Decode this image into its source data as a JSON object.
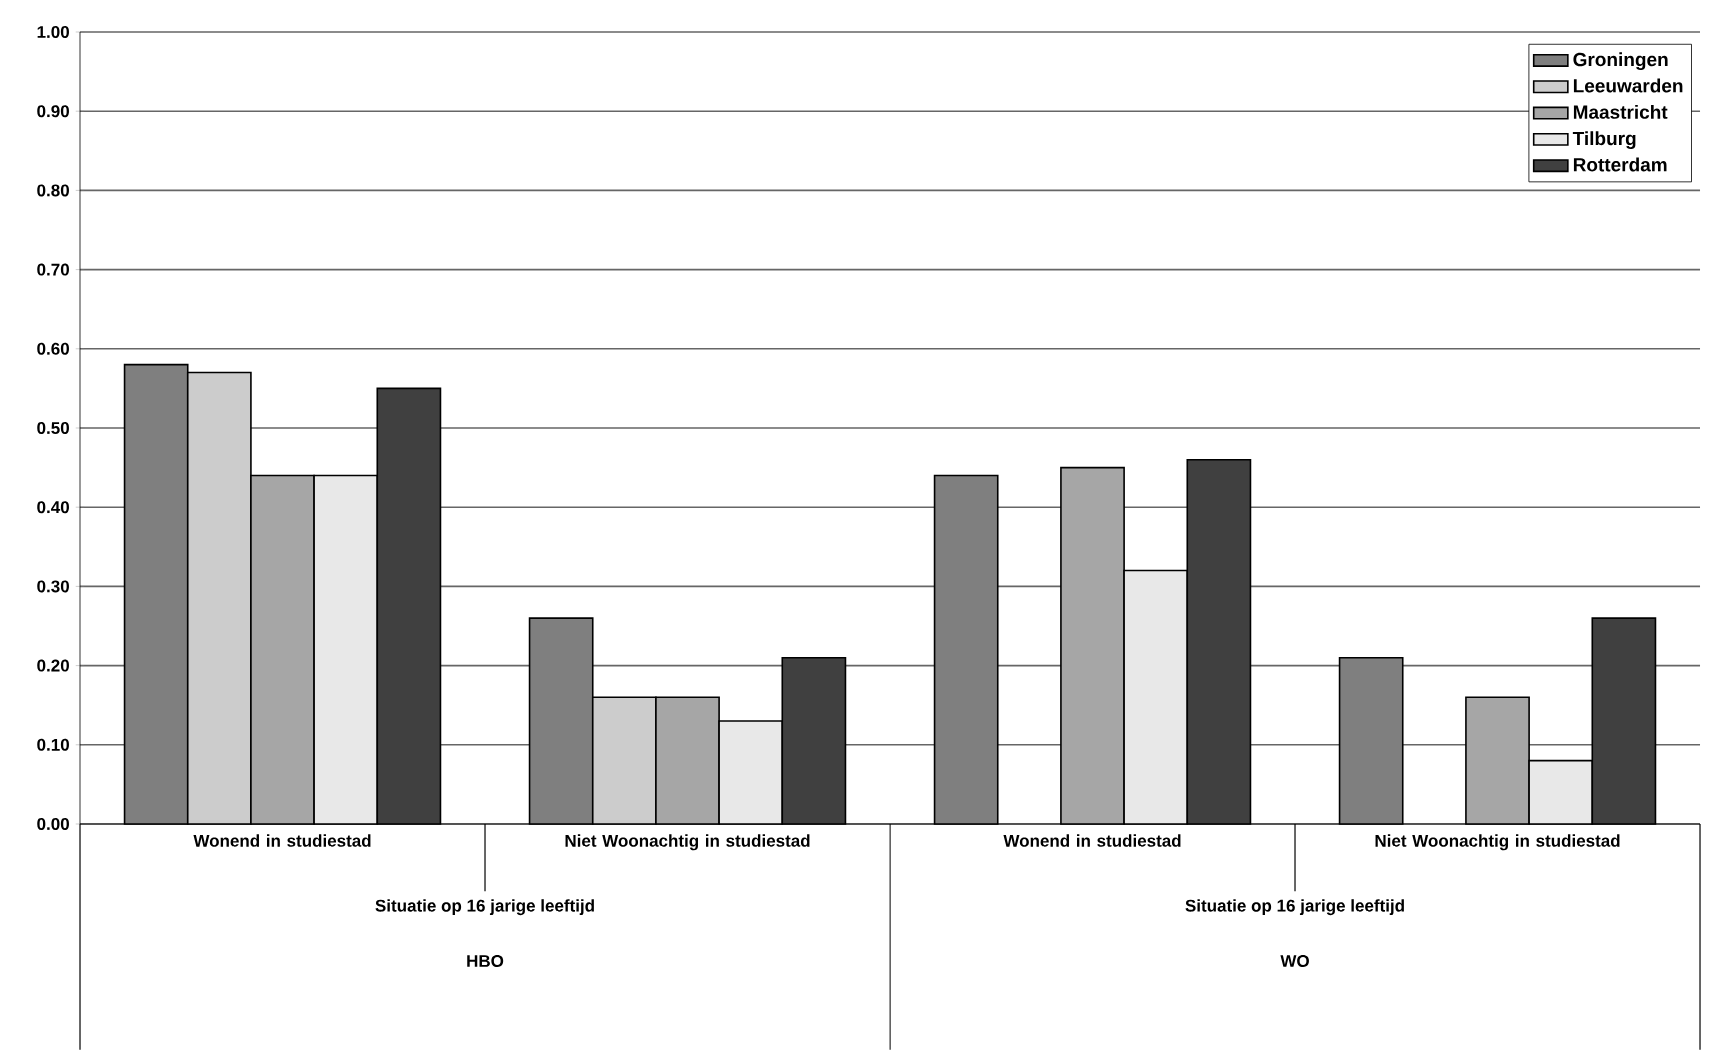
{
  "chart_data": {
    "type": "bar",
    "categories": [
      "Wonend in studiestad",
      "Niet Woonachtig in studiestad",
      "Wonend in studiestad",
      "Niet Woonachtig in studiestad"
    ],
    "series": [
      {
        "name": "Groningen",
        "color": "#7f7f7f",
        "values": [
          0.58,
          0.26,
          0.44,
          0.21
        ]
      },
      {
        "name": "Leeuwarden",
        "color": "#cccccc",
        "values": [
          0.57,
          0.16,
          null,
          null
        ]
      },
      {
        "name": "Maastricht",
        "color": "#a6a6a6",
        "values": [
          0.44,
          0.16,
          0.45,
          0.16
        ]
      },
      {
        "name": "Tilburg",
        "color": "#e8e8e8",
        "values": [
          0.44,
          0.13,
          0.32,
          0.08
        ]
      },
      {
        "name": "Rotterdam",
        "color": "#404040",
        "values": [
          0.55,
          0.21,
          0.46,
          0.26
        ]
      }
    ],
    "ylim": [
      0,
      1
    ],
    "yticks": [
      {
        "value": 0,
        "label": "0.00"
      },
      {
        "value": 0.1,
        "label": "0.10"
      },
      {
        "value": 0.2,
        "label": "0.20"
      },
      {
        "value": 0.3,
        "label": "0.30"
      },
      {
        "value": 0.4,
        "label": "0.40"
      },
      {
        "value": 0.5,
        "label": "0.50"
      },
      {
        "value": 0.6,
        "label": "0.60"
      },
      {
        "value": 0.7,
        "label": "0.70"
      },
      {
        "value": 0.8,
        "label": "0.80"
      },
      {
        "value": 0.9,
        "label": "0.90"
      },
      {
        "value": 1,
        "label": "1.00"
      }
    ],
    "annotations": [
      "Situatie op 16 jarige leeftijd",
      "Situatie op 16 jarige leeftijd",
      "HBO",
      "WO"
    ],
    "grid": "y",
    "legend": "top right"
  }
}
